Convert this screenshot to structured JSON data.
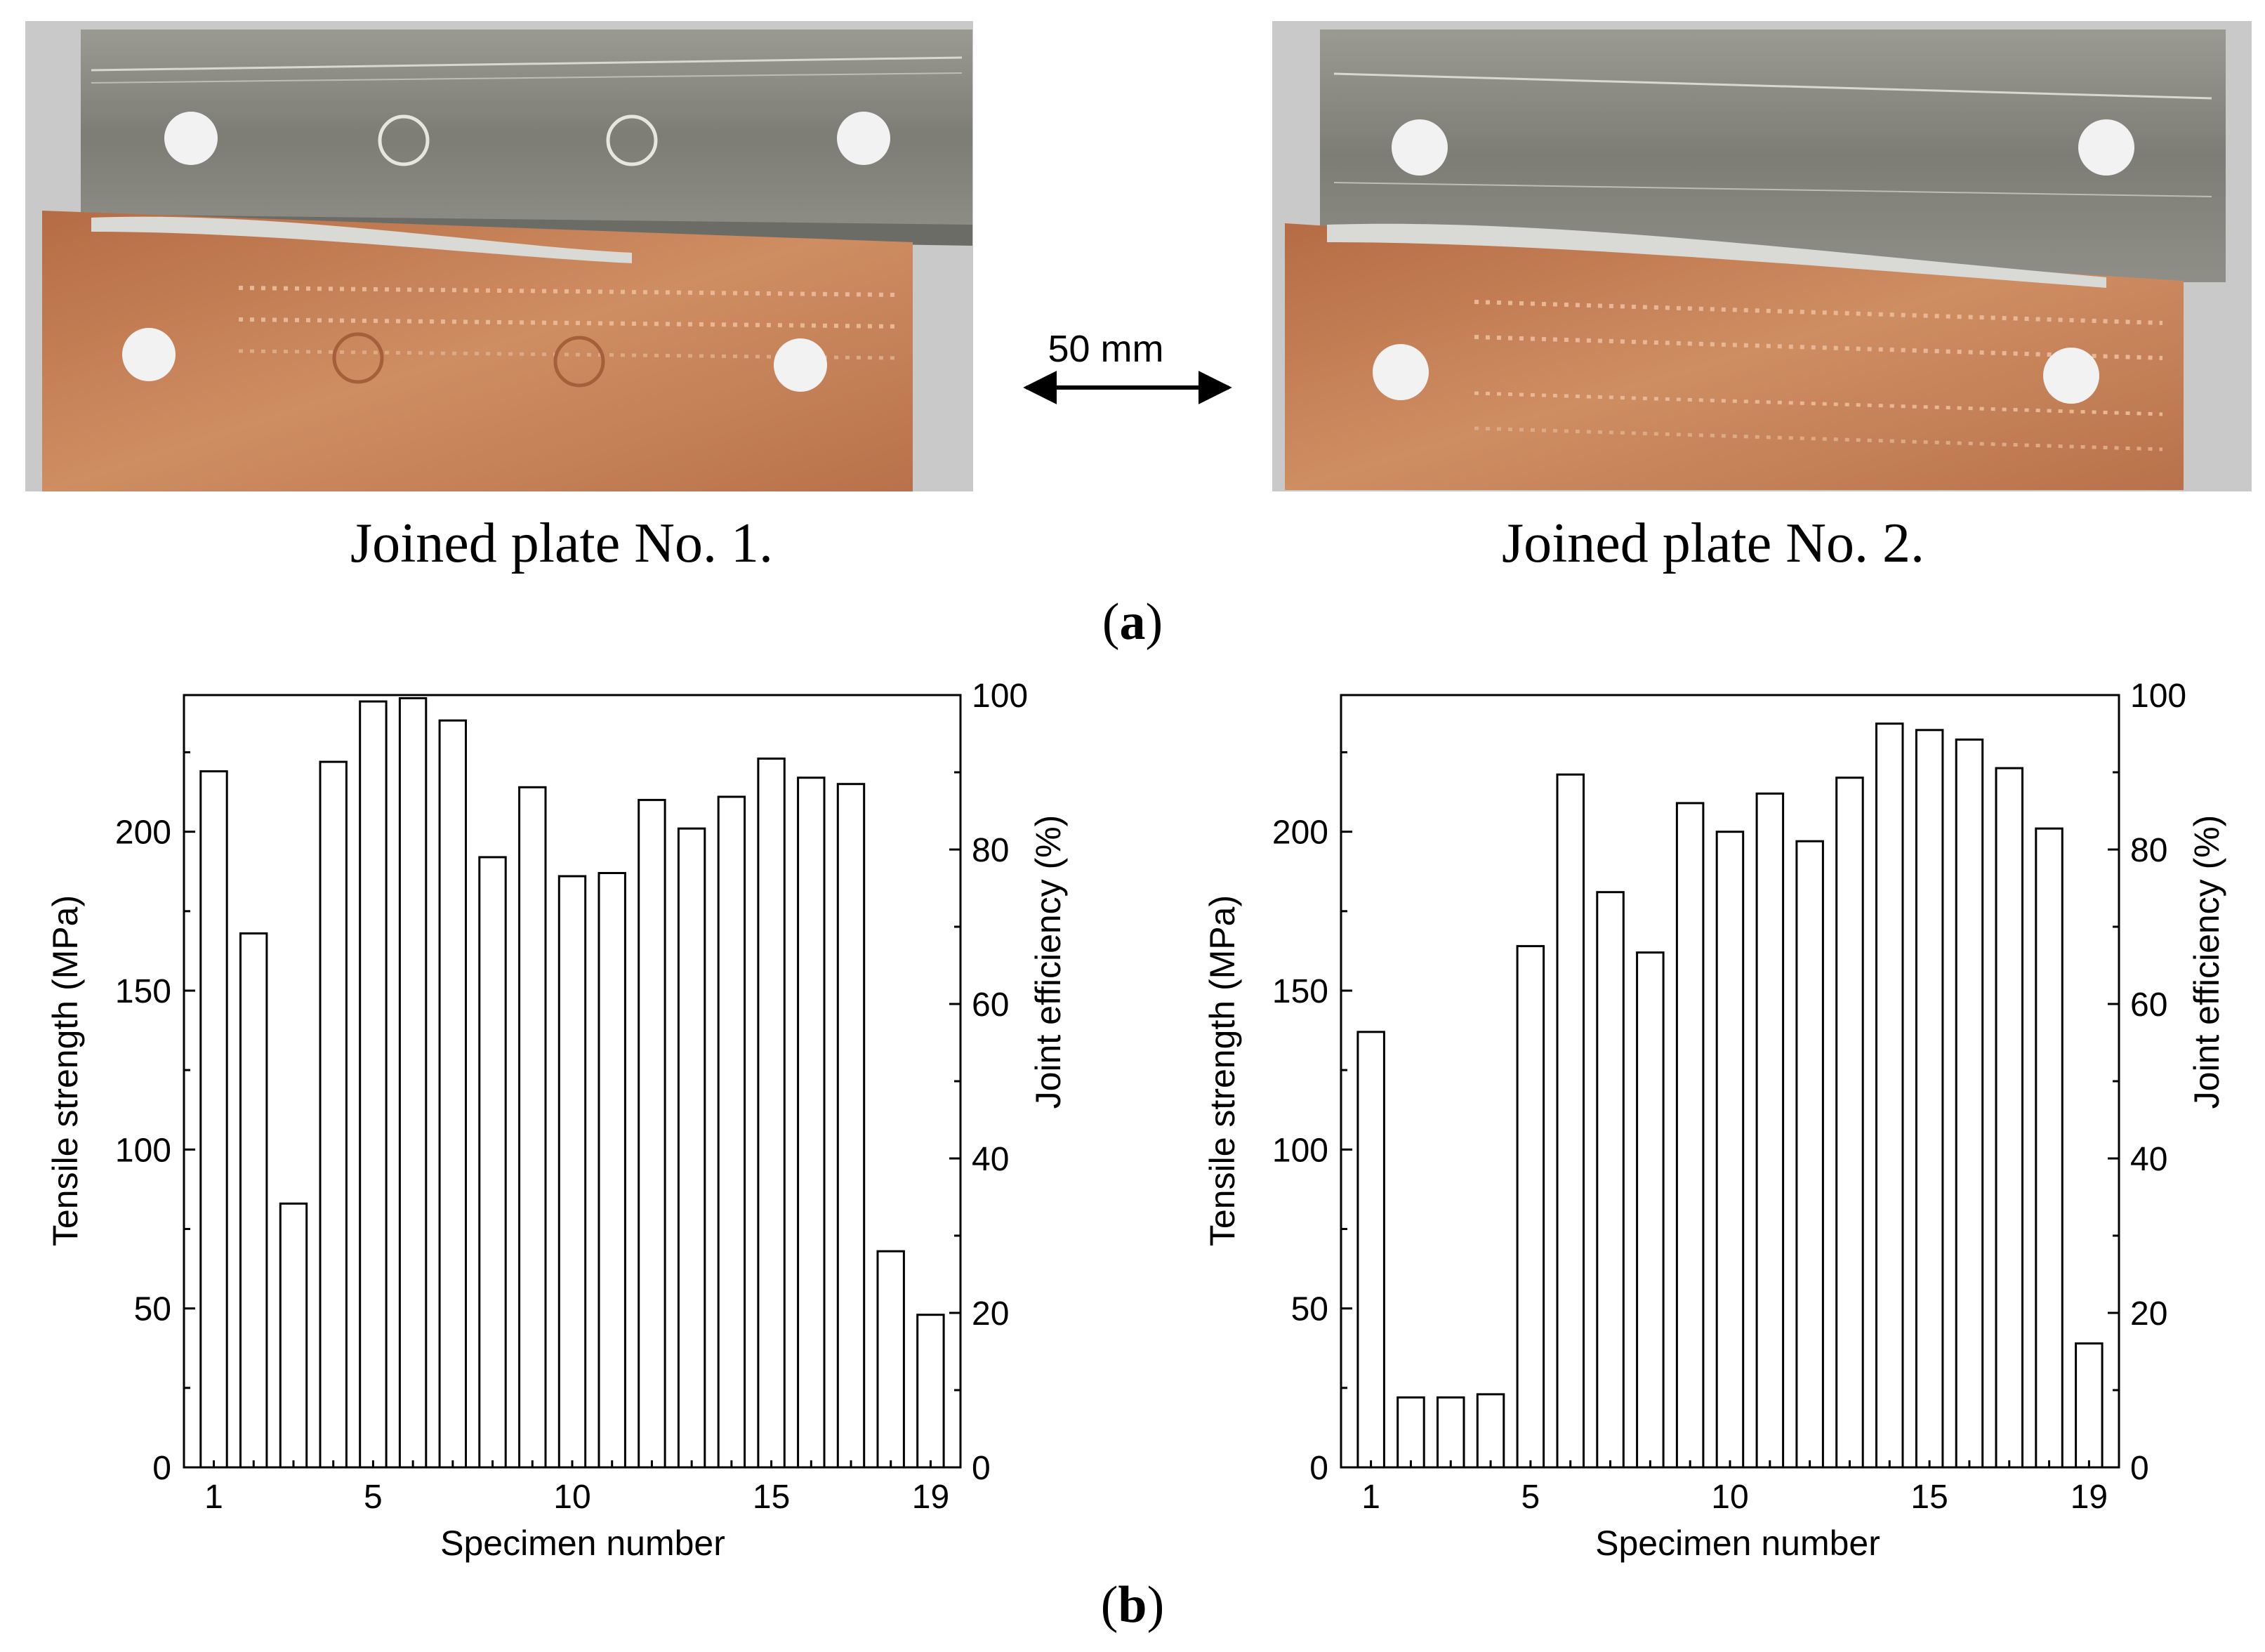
{
  "panel_a": {
    "label_open": "(",
    "label_letter": "a",
    "label_close": ")",
    "scale_label": "50 mm",
    "plates": [
      {
        "caption": "Joined plate No. 1."
      },
      {
        "caption": "Joined plate No. 2."
      }
    ],
    "colors": {
      "aluminum": "#8c8c84",
      "copper": "#c07a52",
      "background": "#c9c9c9"
    }
  },
  "panel_b": {
    "label_open": "(",
    "label_letter": "b",
    "label_close": ")"
  },
  "chart_data": [
    {
      "type": "bar",
      "title": "",
      "xlabel": "Specimen number",
      "ylabel": "Tensile strength (MPa)",
      "y2label": "Joint efficiency (%)",
      "x": [
        1,
        2,
        3,
        4,
        5,
        6,
        7,
        8,
        9,
        10,
        11,
        12,
        13,
        14,
        15,
        16,
        17,
        18,
        19
      ],
      "xticks": [
        1,
        5,
        10,
        15,
        19
      ],
      "ylim": [
        0,
        243
      ],
      "yticks": [
        0,
        50,
        100,
        150,
        200
      ],
      "y2lim": [
        0,
        100
      ],
      "y2ticks": [
        0,
        20,
        40,
        60,
        80,
        100
      ],
      "values": [
        219,
        168,
        83,
        222,
        241,
        242,
        235,
        192,
        214,
        186,
        187,
        210,
        201,
        211,
        223,
        217,
        215,
        68,
        48
      ],
      "bar_fill": "#ffffff",
      "bar_stroke": "#000000",
      "grid": false
    },
    {
      "type": "bar",
      "title": "",
      "xlabel": "Specimen number",
      "ylabel": "Tensile strength (MPa)",
      "y2label": "Joint efficiency (%)",
      "x": [
        1,
        2,
        3,
        4,
        5,
        6,
        7,
        8,
        9,
        10,
        11,
        12,
        13,
        14,
        15,
        16,
        17,
        18,
        19
      ],
      "xticks": [
        1,
        5,
        10,
        15,
        19
      ],
      "ylim": [
        0,
        243
      ],
      "yticks": [
        0,
        50,
        100,
        150,
        200
      ],
      "y2lim": [
        0,
        100
      ],
      "y2ticks": [
        0,
        20,
        40,
        60,
        80,
        100
      ],
      "values": [
        137,
        22,
        22,
        23,
        164,
        218,
        181,
        162,
        209,
        200,
        212,
        197,
        217,
        234,
        232,
        229,
        220,
        201,
        39
      ],
      "bar_fill": "#ffffff",
      "bar_stroke": "#000000",
      "grid": false
    }
  ]
}
